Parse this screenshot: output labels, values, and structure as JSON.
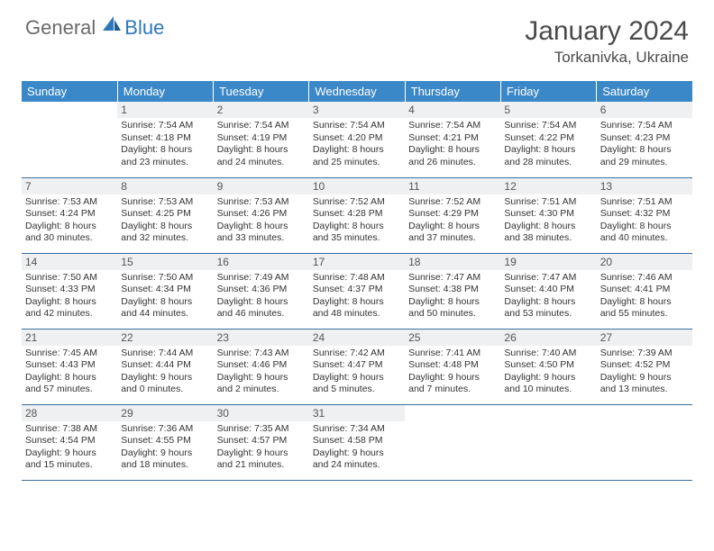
{
  "logo": {
    "general": "General",
    "blue": "Blue"
  },
  "title": "January 2024",
  "location": "Torkanivka, Ukraine",
  "colors": {
    "header_bg": "#3b88c8",
    "header_text": "#ffffff",
    "daynum_bg": "#eef0f1",
    "border": "#3b6ea0",
    "logo_gray": "#6a6a6a",
    "logo_blue": "#2f77bb"
  },
  "weekdays": [
    "Sunday",
    "Monday",
    "Tuesday",
    "Wednesday",
    "Thursday",
    "Friday",
    "Saturday"
  ],
  "weeks": [
    [
      {
        "n": "",
        "lines": []
      },
      {
        "n": "1",
        "lines": [
          "Sunrise: 7:54 AM",
          "Sunset: 4:18 PM",
          "Daylight: 8 hours",
          "and 23 minutes."
        ]
      },
      {
        "n": "2",
        "lines": [
          "Sunrise: 7:54 AM",
          "Sunset: 4:19 PM",
          "Daylight: 8 hours",
          "and 24 minutes."
        ]
      },
      {
        "n": "3",
        "lines": [
          "Sunrise: 7:54 AM",
          "Sunset: 4:20 PM",
          "Daylight: 8 hours",
          "and 25 minutes."
        ]
      },
      {
        "n": "4",
        "lines": [
          "Sunrise: 7:54 AM",
          "Sunset: 4:21 PM",
          "Daylight: 8 hours",
          "and 26 minutes."
        ]
      },
      {
        "n": "5",
        "lines": [
          "Sunrise: 7:54 AM",
          "Sunset: 4:22 PM",
          "Daylight: 8 hours",
          "and 28 minutes."
        ]
      },
      {
        "n": "6",
        "lines": [
          "Sunrise: 7:54 AM",
          "Sunset: 4:23 PM",
          "Daylight: 8 hours",
          "and 29 minutes."
        ]
      }
    ],
    [
      {
        "n": "7",
        "lines": [
          "Sunrise: 7:53 AM",
          "Sunset: 4:24 PM",
          "Daylight: 8 hours",
          "and 30 minutes."
        ]
      },
      {
        "n": "8",
        "lines": [
          "Sunrise: 7:53 AM",
          "Sunset: 4:25 PM",
          "Daylight: 8 hours",
          "and 32 minutes."
        ]
      },
      {
        "n": "9",
        "lines": [
          "Sunrise: 7:53 AM",
          "Sunset: 4:26 PM",
          "Daylight: 8 hours",
          "and 33 minutes."
        ]
      },
      {
        "n": "10",
        "lines": [
          "Sunrise: 7:52 AM",
          "Sunset: 4:28 PM",
          "Daylight: 8 hours",
          "and 35 minutes."
        ]
      },
      {
        "n": "11",
        "lines": [
          "Sunrise: 7:52 AM",
          "Sunset: 4:29 PM",
          "Daylight: 8 hours",
          "and 37 minutes."
        ]
      },
      {
        "n": "12",
        "lines": [
          "Sunrise: 7:51 AM",
          "Sunset: 4:30 PM",
          "Daylight: 8 hours",
          "and 38 minutes."
        ]
      },
      {
        "n": "13",
        "lines": [
          "Sunrise: 7:51 AM",
          "Sunset: 4:32 PM",
          "Daylight: 8 hours",
          "and 40 minutes."
        ]
      }
    ],
    [
      {
        "n": "14",
        "lines": [
          "Sunrise: 7:50 AM",
          "Sunset: 4:33 PM",
          "Daylight: 8 hours",
          "and 42 minutes."
        ]
      },
      {
        "n": "15",
        "lines": [
          "Sunrise: 7:50 AM",
          "Sunset: 4:34 PM",
          "Daylight: 8 hours",
          "and 44 minutes."
        ]
      },
      {
        "n": "16",
        "lines": [
          "Sunrise: 7:49 AM",
          "Sunset: 4:36 PM",
          "Daylight: 8 hours",
          "and 46 minutes."
        ]
      },
      {
        "n": "17",
        "lines": [
          "Sunrise: 7:48 AM",
          "Sunset: 4:37 PM",
          "Daylight: 8 hours",
          "and 48 minutes."
        ]
      },
      {
        "n": "18",
        "lines": [
          "Sunrise: 7:47 AM",
          "Sunset: 4:38 PM",
          "Daylight: 8 hours",
          "and 50 minutes."
        ]
      },
      {
        "n": "19",
        "lines": [
          "Sunrise: 7:47 AM",
          "Sunset: 4:40 PM",
          "Daylight: 8 hours",
          "and 53 minutes."
        ]
      },
      {
        "n": "20",
        "lines": [
          "Sunrise: 7:46 AM",
          "Sunset: 4:41 PM",
          "Daylight: 8 hours",
          "and 55 minutes."
        ]
      }
    ],
    [
      {
        "n": "21",
        "lines": [
          "Sunrise: 7:45 AM",
          "Sunset: 4:43 PM",
          "Daylight: 8 hours",
          "and 57 minutes."
        ]
      },
      {
        "n": "22",
        "lines": [
          "Sunrise: 7:44 AM",
          "Sunset: 4:44 PM",
          "Daylight: 9 hours",
          "and 0 minutes."
        ]
      },
      {
        "n": "23",
        "lines": [
          "Sunrise: 7:43 AM",
          "Sunset: 4:46 PM",
          "Daylight: 9 hours",
          "and 2 minutes."
        ]
      },
      {
        "n": "24",
        "lines": [
          "Sunrise: 7:42 AM",
          "Sunset: 4:47 PM",
          "Daylight: 9 hours",
          "and 5 minutes."
        ]
      },
      {
        "n": "25",
        "lines": [
          "Sunrise: 7:41 AM",
          "Sunset: 4:48 PM",
          "Daylight: 9 hours",
          "and 7 minutes."
        ]
      },
      {
        "n": "26",
        "lines": [
          "Sunrise: 7:40 AM",
          "Sunset: 4:50 PM",
          "Daylight: 9 hours",
          "and 10 minutes."
        ]
      },
      {
        "n": "27",
        "lines": [
          "Sunrise: 7:39 AM",
          "Sunset: 4:52 PM",
          "Daylight: 9 hours",
          "and 13 minutes."
        ]
      }
    ],
    [
      {
        "n": "28",
        "lines": [
          "Sunrise: 7:38 AM",
          "Sunset: 4:54 PM",
          "Daylight: 9 hours",
          "and 15 minutes."
        ]
      },
      {
        "n": "29",
        "lines": [
          "Sunrise: 7:36 AM",
          "Sunset: 4:55 PM",
          "Daylight: 9 hours",
          "and 18 minutes."
        ]
      },
      {
        "n": "30",
        "lines": [
          "Sunrise: 7:35 AM",
          "Sunset: 4:57 PM",
          "Daylight: 9 hours",
          "and 21 minutes."
        ]
      },
      {
        "n": "31",
        "lines": [
          "Sunrise: 7:34 AM",
          "Sunset: 4:58 PM",
          "Daylight: 9 hours",
          "and 24 minutes."
        ]
      },
      {
        "n": "",
        "lines": []
      },
      {
        "n": "",
        "lines": []
      },
      {
        "n": "",
        "lines": []
      }
    ]
  ]
}
